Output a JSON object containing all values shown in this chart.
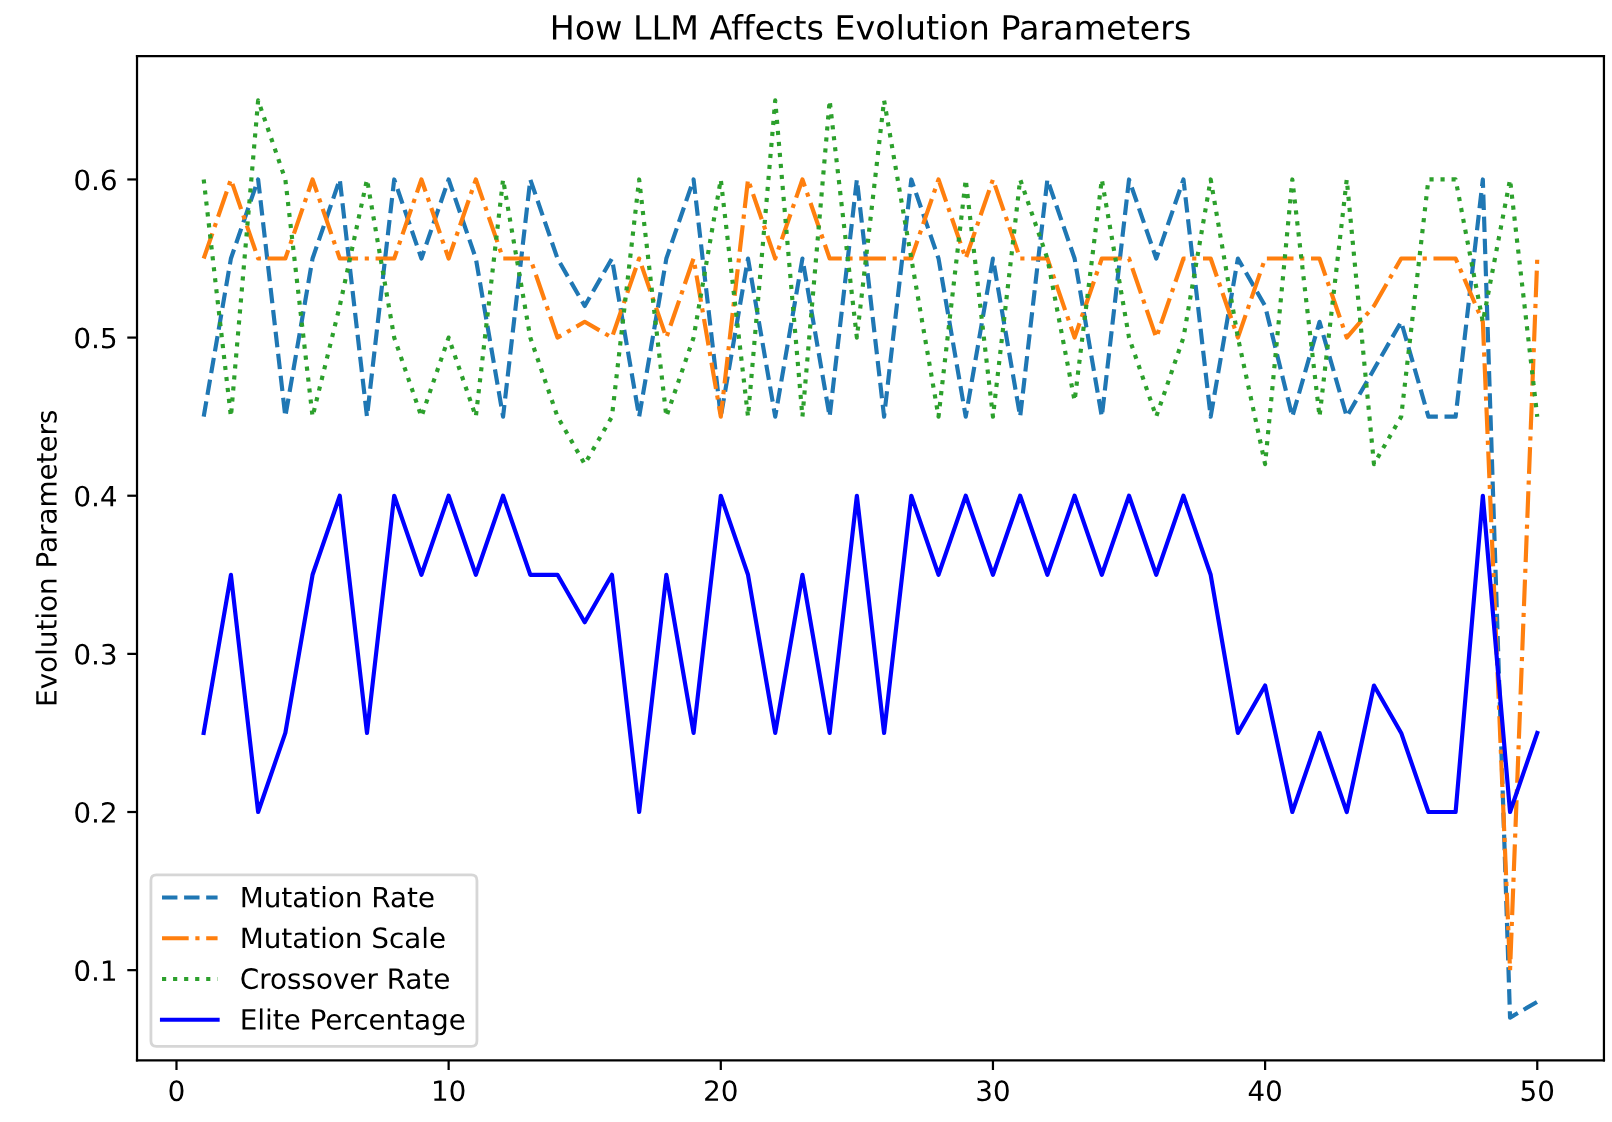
{
  "chart_data": {
    "type": "line",
    "title": "How LLM Affects Evolution Parameters",
    "ylabel": "Evolution Parameters",
    "x": [
      1,
      2,
      3,
      4,
      5,
      6,
      7,
      8,
      9,
      10,
      11,
      12,
      13,
      14,
      15,
      16,
      17,
      18,
      19,
      20,
      21,
      22,
      23,
      24,
      25,
      26,
      27,
      28,
      29,
      30,
      31,
      32,
      33,
      34,
      35,
      36,
      37,
      38,
      39,
      40,
      41,
      42,
      43,
      44,
      45,
      46,
      47,
      48,
      49,
      50
    ],
    "series": [
      {
        "name": "Mutation Rate",
        "color": "#1f77b4",
        "line_style": "dashed",
        "values": [
          0.45,
          0.55,
          0.6,
          0.45,
          0.55,
          0.6,
          0.45,
          0.6,
          0.55,
          0.6,
          0.55,
          0.45,
          0.6,
          0.55,
          0.52,
          0.55,
          0.45,
          0.55,
          0.6,
          0.45,
          0.55,
          0.45,
          0.55,
          0.45,
          0.6,
          0.45,
          0.6,
          0.55,
          0.45,
          0.55,
          0.45,
          0.6,
          0.55,
          0.45,
          0.6,
          0.55,
          0.6,
          0.45,
          0.55,
          0.52,
          0.45,
          0.51,
          0.45,
          0.48,
          0.51,
          0.45,
          0.45,
          0.6,
          0.07,
          0.08
        ]
      },
      {
        "name": "Mutation Scale",
        "color": "#ff7f0e",
        "line_style": "dashdot",
        "values": [
          0.55,
          0.6,
          0.55,
          0.55,
          0.6,
          0.55,
          0.55,
          0.55,
          0.6,
          0.55,
          0.6,
          0.55,
          0.55,
          0.5,
          0.51,
          0.5,
          0.55,
          0.5,
          0.55,
          0.45,
          0.6,
          0.55,
          0.6,
          0.55,
          0.55,
          0.55,
          0.55,
          0.6,
          0.55,
          0.6,
          0.55,
          0.55,
          0.5,
          0.55,
          0.55,
          0.5,
          0.55,
          0.55,
          0.5,
          0.55,
          0.55,
          0.55,
          0.5,
          0.52,
          0.55,
          0.55,
          0.55,
          0.51,
          0.1,
          0.55
        ]
      },
      {
        "name": "Crossover Rate",
        "color": "#2ca02c",
        "line_style": "dotted",
        "values": [
          0.6,
          0.45,
          0.65,
          0.6,
          0.45,
          0.52,
          0.6,
          0.5,
          0.45,
          0.5,
          0.45,
          0.6,
          0.5,
          0.45,
          0.42,
          0.45,
          0.6,
          0.45,
          0.5,
          0.6,
          0.45,
          0.65,
          0.45,
          0.65,
          0.5,
          0.65,
          0.55,
          0.45,
          0.6,
          0.45,
          0.6,
          0.55,
          0.46,
          0.6,
          0.5,
          0.45,
          0.5,
          0.6,
          0.5,
          0.42,
          0.6,
          0.45,
          0.6,
          0.42,
          0.45,
          0.6,
          0.6,
          0.51,
          0.6,
          0.45
        ]
      },
      {
        "name": "Elite Percentage",
        "color": "#0000ff",
        "line_style": "solid",
        "values": [
          0.25,
          0.35,
          0.2,
          0.25,
          0.35,
          0.4,
          0.25,
          0.4,
          0.35,
          0.4,
          0.35,
          0.4,
          0.35,
          0.35,
          0.32,
          0.35,
          0.2,
          0.35,
          0.25,
          0.4,
          0.35,
          0.25,
          0.35,
          0.25,
          0.4,
          0.25,
          0.4,
          0.35,
          0.4,
          0.35,
          0.4,
          0.35,
          0.4,
          0.35,
          0.4,
          0.35,
          0.4,
          0.35,
          0.25,
          0.28,
          0.2,
          0.25,
          0.2,
          0.28,
          0.25,
          0.2,
          0.2,
          0.4,
          0.2,
          0.25
        ]
      }
    ],
    "xlim": [
      -1.45,
      52.45
    ],
    "xticks": [
      0,
      10,
      20,
      30,
      40,
      50
    ],
    "ylim": [
      0.043,
      0.678
    ],
    "yticks": [
      0.1,
      0.2,
      0.3,
      0.4,
      0.5,
      0.6
    ],
    "legend": "bottom left",
    "grid": false
  }
}
